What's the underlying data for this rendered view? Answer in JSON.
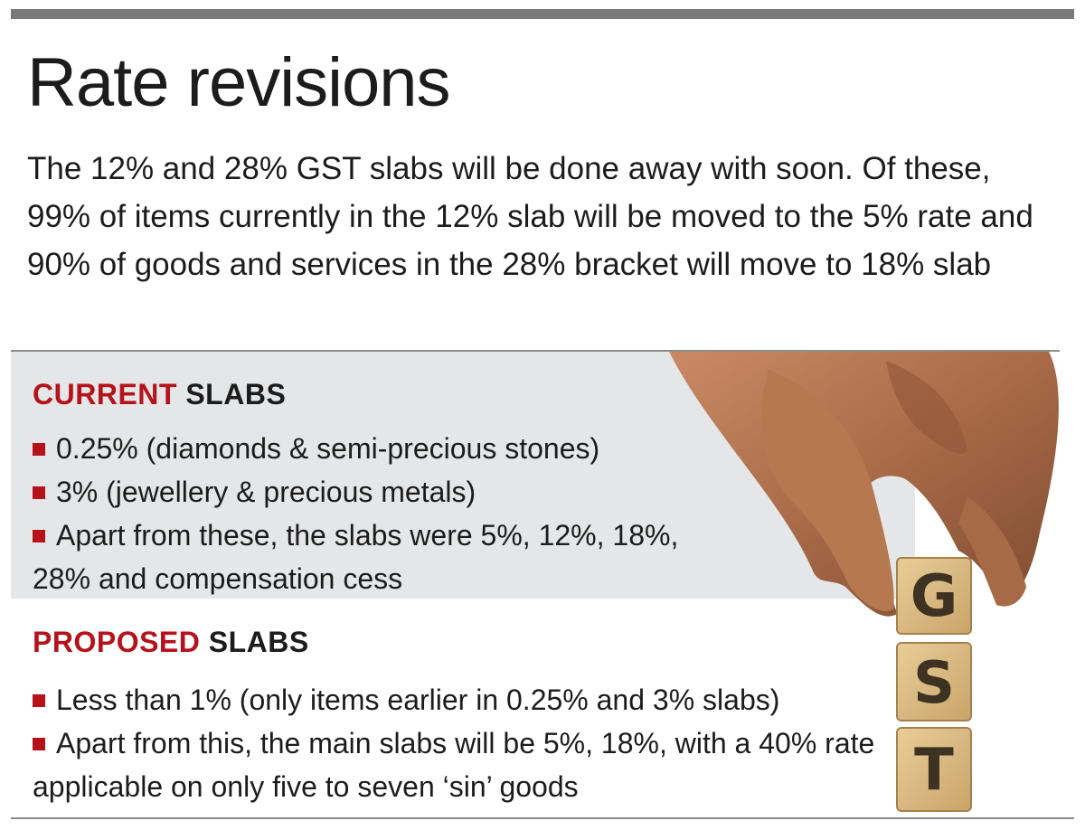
{
  "title": "Rate revisions",
  "intro": "The 12% and 28% GST slabs will be done away with soon. Of these, 99% of items currently in the 12% slab will be moved to the 5% rate and 90% of goods and services in the 28% bracket will move to 18% slab",
  "current": {
    "heading_accent": "CURRENT",
    "heading_rest": "SLABS",
    "items": [
      "0.25% (diamonds & semi-precious stones)",
      "3% (jewellery & precious metals)",
      "Apart from these, the slabs were 5%, 12%, 18%, 28% and compensation cess"
    ]
  },
  "proposed": {
    "heading_accent": "PROPOSED",
    "heading_rest": "SLABS",
    "items": [
      "Less than 1% (only items earlier in 0.25% and 3% slabs)",
      "Apart from this, the main slabs will be 5%, 18%, with a 40% rate applicable on only five to seven ‘sin’ goods"
    ]
  },
  "image": {
    "block_letters": [
      "G",
      "S",
      "T"
    ]
  },
  "colors": {
    "accent": "#b5121b",
    "text": "#1c1c1c",
    "panel": "#e5e6e7",
    "rule": "#7a7a7a"
  }
}
